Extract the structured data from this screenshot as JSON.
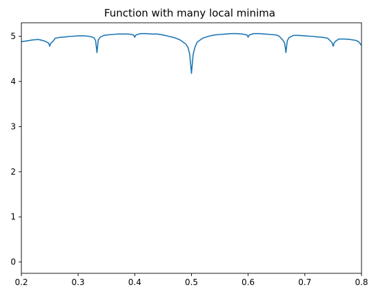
{
  "chart_data": {
    "type": "line",
    "title": "Function with many local minima",
    "xlabel": "",
    "ylabel": "",
    "xlim": [
      0.2,
      0.8
    ],
    "ylim": [
      -0.25,
      5.3
    ],
    "xticks": [
      0.2,
      0.3,
      0.4,
      0.5,
      0.6,
      0.7,
      0.8
    ],
    "xtick_labels": [
      "0.2",
      "0.3",
      "0.4",
      "0.5",
      "0.6",
      "0.7",
      "0.8"
    ],
    "yticks": [
      0,
      1,
      2,
      3,
      4,
      5
    ],
    "ytick_labels": [
      "0",
      "1",
      "2",
      "3",
      "4",
      "5"
    ],
    "grid": false,
    "series": [
      {
        "color": "#1f77b4",
        "x": [
          0.2,
          0.21,
          0.22,
          0.23,
          0.24,
          0.245,
          0.248,
          0.25,
          0.252,
          0.255,
          0.26,
          0.27,
          0.28,
          0.285,
          0.29,
          0.3,
          0.31,
          0.32,
          0.328,
          0.331,
          0.3333,
          0.3356,
          0.339,
          0.345,
          0.35,
          0.36,
          0.37,
          0.38,
          0.39,
          0.398,
          0.4,
          0.402,
          0.41,
          0.42,
          0.43,
          0.44,
          0.45,
          0.46,
          0.47,
          0.48,
          0.49,
          0.494,
          0.497,
          0.5,
          0.503,
          0.506,
          0.51,
          0.52,
          0.53,
          0.54,
          0.55,
          0.56,
          0.57,
          0.58,
          0.59,
          0.598,
          0.6,
          0.602,
          0.61,
          0.62,
          0.63,
          0.64,
          0.65,
          0.655,
          0.661,
          0.6644,
          0.6667,
          0.669,
          0.672,
          0.68,
          0.69,
          0.7,
          0.71,
          0.715,
          0.72,
          0.73,
          0.74,
          0.745,
          0.748,
          0.75,
          0.752,
          0.755,
          0.76,
          0.77,
          0.78,
          0.79,
          0.795,
          0.8
        ],
        "y": [
          4.88,
          4.9,
          4.92,
          4.93,
          4.9,
          4.87,
          4.85,
          4.78,
          4.85,
          4.88,
          4.96,
          4.98,
          4.99,
          5.0,
          5.0,
          5.01,
          5.01,
          5.0,
          4.97,
          4.9,
          4.64,
          4.92,
          4.98,
          5.02,
          5.03,
          5.04,
          5.05,
          5.05,
          5.05,
          5.03,
          4.98,
          5.03,
          5.06,
          5.06,
          5.05,
          5.05,
          5.03,
          5.0,
          4.97,
          4.92,
          4.83,
          4.75,
          4.6,
          4.18,
          4.6,
          4.75,
          4.87,
          4.96,
          5.0,
          5.03,
          5.04,
          5.05,
          5.06,
          5.06,
          5.05,
          5.03,
          4.98,
          5.03,
          5.06,
          5.06,
          5.05,
          5.04,
          5.03,
          5.0,
          4.92,
          4.85,
          4.64,
          4.9,
          4.97,
          5.02,
          5.02,
          5.01,
          5.0,
          5.0,
          4.99,
          4.98,
          4.96,
          4.9,
          4.86,
          4.78,
          4.86,
          4.9,
          4.94,
          4.94,
          4.93,
          4.91,
          4.88,
          4.8
        ]
      }
    ]
  }
}
